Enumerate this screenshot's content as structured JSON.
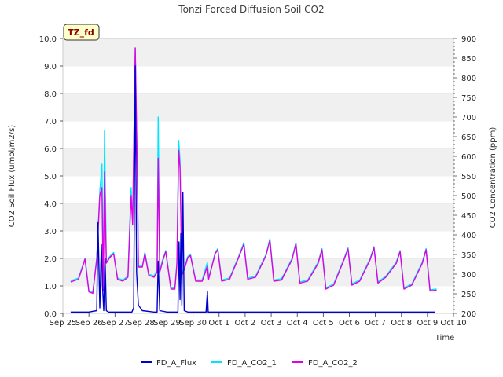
{
  "chart_data": {
    "type": "line",
    "title": "Tonzi Forced Diffusion Soil CO2",
    "site_label": "TZ_fd",
    "xlabel": "Time",
    "ylabel_left": "CO2 Soil Flux (umol/m2/s)",
    "ylabel_right": "CO2 Concentration (ppm)",
    "xlim": [
      0,
      15
    ],
    "ylim_left": [
      0,
      10
    ],
    "ylim_right": [
      200,
      900
    ],
    "x_ticks": [
      {
        "pos": 0,
        "label": "Sep 25"
      },
      {
        "pos": 1,
        "label": "Sep 26"
      },
      {
        "pos": 2,
        "label": "Sep 27"
      },
      {
        "pos": 3,
        "label": "Sep 28"
      },
      {
        "pos": 4,
        "label": "Sep 29"
      },
      {
        "pos": 5,
        "label": "Sep 30"
      },
      {
        "pos": 6,
        "label": "Oct 1"
      },
      {
        "pos": 7,
        "label": "Oct 2"
      },
      {
        "pos": 8,
        "label": "Oct 3"
      },
      {
        "pos": 9,
        "label": "Oct 4"
      },
      {
        "pos": 10,
        "label": "Oct 5"
      },
      {
        "pos": 11,
        "label": "Oct 6"
      },
      {
        "pos": 12,
        "label": "Oct 7"
      },
      {
        "pos": 13,
        "label": "Oct 8"
      },
      {
        "pos": 14,
        "label": "Oct 9"
      },
      {
        "pos": 15,
        "label": "Oct 10"
      }
    ],
    "left_ticks": [
      "0.0",
      "1.0",
      "2.0",
      "3.0",
      "4.0",
      "5.0",
      "6.0",
      "7.0",
      "8.0",
      "9.0",
      "10.0"
    ],
    "right_ticks": [
      "200",
      "250",
      "300",
      "350",
      "400",
      "450",
      "500",
      "550",
      "600",
      "650",
      "700",
      "750",
      "800",
      "850",
      "900"
    ],
    "grid": "horizontal bands",
    "legend_position": "bottom-center",
    "colors": {
      "flux": "#0000cd",
      "co2_1": "#00e5ff",
      "co2_2": "#e000e0",
      "band": "#f0f0f0"
    },
    "series": [
      {
        "name": "FD_A_Flux",
        "axis": "left",
        "points": [
          [
            0.3,
            0.05
          ],
          [
            1.0,
            0.05
          ],
          [
            1.3,
            0.1
          ],
          [
            1.35,
            3.3
          ],
          [
            1.42,
            0.2
          ],
          [
            1.48,
            2.5
          ],
          [
            1.52,
            1.0
          ],
          [
            1.57,
            0.1
          ],
          [
            1.62,
            2.0
          ],
          [
            1.67,
            0.1
          ],
          [
            1.75,
            0.05
          ],
          [
            2.2,
            0.05
          ],
          [
            2.65,
            0.05
          ],
          [
            2.72,
            0.2
          ],
          [
            2.78,
            9.0
          ],
          [
            2.83,
            1.5
          ],
          [
            2.9,
            0.3
          ],
          [
            3.05,
            0.1
          ],
          [
            3.5,
            0.05
          ],
          [
            3.62,
            0.05
          ],
          [
            3.66,
            1.9
          ],
          [
            3.72,
            0.1
          ],
          [
            4.0,
            0.05
          ],
          [
            4.42,
            0.05
          ],
          [
            4.46,
            2.6
          ],
          [
            4.5,
            0.5
          ],
          [
            4.53,
            2.9
          ],
          [
            4.57,
            0.3
          ],
          [
            4.61,
            4.4
          ],
          [
            4.66,
            0.1
          ],
          [
            4.8,
            0.05
          ],
          [
            5.5,
            0.05
          ],
          [
            5.55,
            0.8
          ],
          [
            5.58,
            0.05
          ],
          [
            7.0,
            0.05
          ],
          [
            9.0,
            0.05
          ],
          [
            11.0,
            0.05
          ],
          [
            13.0,
            0.05
          ],
          [
            14.3,
            0.05
          ]
        ]
      },
      {
        "name": "FD_A_CO2_1",
        "axis": "right",
        "points": [
          [
            0.3,
            283
          ],
          [
            0.6,
            290
          ],
          [
            0.85,
            340
          ],
          [
            1.0,
            258
          ],
          [
            1.15,
            254
          ],
          [
            1.3,
            340
          ],
          [
            1.42,
            510
          ],
          [
            1.5,
            580
          ],
          [
            1.55,
            260
          ],
          [
            1.6,
            665
          ],
          [
            1.67,
            330
          ],
          [
            1.8,
            345
          ],
          [
            1.95,
            355
          ],
          [
            2.1,
            290
          ],
          [
            2.3,
            285
          ],
          [
            2.5,
            295
          ],
          [
            2.62,
            520
          ],
          [
            2.68,
            430
          ],
          [
            2.78,
            875
          ],
          [
            2.86,
            550
          ],
          [
            2.9,
            320
          ],
          [
            3.05,
            320
          ],
          [
            3.15,
            355
          ],
          [
            3.3,
            300
          ],
          [
            3.5,
            295
          ],
          [
            3.62,
            310
          ],
          [
            3.66,
            700
          ],
          [
            3.72,
            310
          ],
          [
            3.85,
            340
          ],
          [
            3.95,
            360
          ],
          [
            4.15,
            265
          ],
          [
            4.3,
            265
          ],
          [
            4.38,
            330
          ],
          [
            4.45,
            640
          ],
          [
            4.5,
            590
          ],
          [
            4.57,
            300
          ],
          [
            4.63,
            310
          ],
          [
            4.8,
            345
          ],
          [
            4.9,
            350
          ],
          [
            5.1,
            285
          ],
          [
            5.35,
            285
          ],
          [
            5.55,
            330
          ],
          [
            5.6,
            290
          ],
          [
            5.85,
            355
          ],
          [
            5.95,
            365
          ],
          [
            6.1,
            285
          ],
          [
            6.4,
            290
          ],
          [
            6.75,
            345
          ],
          [
            6.95,
            380
          ],
          [
            7.1,
            290
          ],
          [
            7.4,
            295
          ],
          [
            7.8,
            350
          ],
          [
            7.95,
            390
          ],
          [
            8.1,
            285
          ],
          [
            8.4,
            288
          ],
          [
            8.8,
            340
          ],
          [
            8.95,
            380
          ],
          [
            9.1,
            280
          ],
          [
            9.4,
            285
          ],
          [
            9.8,
            330
          ],
          [
            9.95,
            365
          ],
          [
            10.1,
            265
          ],
          [
            10.4,
            275
          ],
          [
            10.8,
            340
          ],
          [
            10.95,
            367
          ],
          [
            11.1,
            275
          ],
          [
            11.4,
            285
          ],
          [
            11.8,
            340
          ],
          [
            11.95,
            370
          ],
          [
            12.1,
            280
          ],
          [
            12.4,
            295
          ],
          [
            12.8,
            330
          ],
          [
            12.95,
            360
          ],
          [
            13.1,
            265
          ],
          [
            13.4,
            275
          ],
          [
            13.8,
            330
          ],
          [
            13.95,
            365
          ],
          [
            14.1,
            260
          ],
          [
            14.35,
            262
          ]
        ]
      },
      {
        "name": "FD_A_CO2_2",
        "axis": "right",
        "points": [
          [
            0.3,
            280
          ],
          [
            0.6,
            287
          ],
          [
            0.85,
            338
          ],
          [
            1.0,
            255
          ],
          [
            1.15,
            251
          ],
          [
            1.3,
            338
          ],
          [
            1.42,
            500
          ],
          [
            1.5,
            520
          ],
          [
            1.55,
            258
          ],
          [
            1.6,
            560
          ],
          [
            1.67,
            328
          ],
          [
            1.8,
            342
          ],
          [
            1.95,
            352
          ],
          [
            2.1,
            287
          ],
          [
            2.3,
            282
          ],
          [
            2.5,
            292
          ],
          [
            2.62,
            500
          ],
          [
            2.68,
            425
          ],
          [
            2.78,
            876
          ],
          [
            2.86,
            545
          ],
          [
            2.9,
            318
          ],
          [
            3.05,
            318
          ],
          [
            3.15,
            352
          ],
          [
            3.3,
            297
          ],
          [
            3.5,
            292
          ],
          [
            3.62,
            305
          ],
          [
            3.66,
            595
          ],
          [
            3.72,
            305
          ],
          [
            3.85,
            337
          ],
          [
            3.95,
            357
          ],
          [
            4.15,
            262
          ],
          [
            4.3,
            262
          ],
          [
            4.38,
            325
          ],
          [
            4.45,
            615
          ],
          [
            4.5,
            570
          ],
          [
            4.57,
            297
          ],
          [
            4.63,
            305
          ],
          [
            4.8,
            342
          ],
          [
            4.9,
            347
          ],
          [
            5.1,
            282
          ],
          [
            5.35,
            282
          ],
          [
            5.55,
            320
          ],
          [
            5.6,
            287
          ],
          [
            5.85,
            352
          ],
          [
            5.95,
            362
          ],
          [
            6.1,
            282
          ],
          [
            6.4,
            287
          ],
          [
            6.75,
            342
          ],
          [
            6.95,
            376
          ],
          [
            7.1,
            287
          ],
          [
            7.4,
            292
          ],
          [
            7.8,
            347
          ],
          [
            7.95,
            386
          ],
          [
            8.1,
            282
          ],
          [
            8.4,
            285
          ],
          [
            8.8,
            337
          ],
          [
            8.95,
            377
          ],
          [
            9.1,
            277
          ],
          [
            9.4,
            282
          ],
          [
            9.8,
            327
          ],
          [
            9.95,
            362
          ],
          [
            10.1,
            262
          ],
          [
            10.4,
            272
          ],
          [
            10.8,
            337
          ],
          [
            10.95,
            364
          ],
          [
            11.1,
            272
          ],
          [
            11.4,
            282
          ],
          [
            11.8,
            337
          ],
          [
            11.95,
            367
          ],
          [
            12.1,
            277
          ],
          [
            12.4,
            292
          ],
          [
            12.8,
            327
          ],
          [
            12.95,
            357
          ],
          [
            13.1,
            262
          ],
          [
            13.4,
            272
          ],
          [
            13.8,
            327
          ],
          [
            13.95,
            362
          ],
          [
            14.1,
            257
          ],
          [
            14.35,
            259
          ]
        ]
      }
    ]
  }
}
